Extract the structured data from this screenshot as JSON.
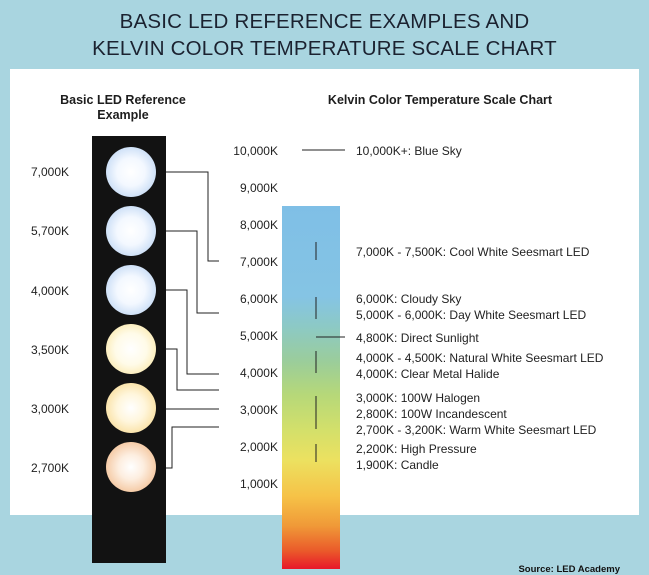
{
  "title": {
    "line1": "BASIC LED REFERENCE EXAMPLES AND",
    "line2": "KELVIN COLOR TEMPERATURE SCALE CHART"
  },
  "left_panel": {
    "heading_line1": "Basic LED Reference",
    "heading_line2": "Example",
    "bulbs": [
      {
        "label": "7,000K",
        "tone": "cool-white"
      },
      {
        "label": "5,700K",
        "tone": "cool-white"
      },
      {
        "label": "4,000K",
        "tone": "neutral-white"
      },
      {
        "label": "3,500K",
        "tone": "warm-cream"
      },
      {
        "label": "3,000K",
        "tone": "warm-yellow"
      },
      {
        "label": "2,700K",
        "tone": "warm-amber"
      }
    ]
  },
  "right_panel": {
    "heading": "Kelvin Color Temperature Scale Chart",
    "scale_ticks": [
      "10,000K",
      "9,000K",
      "8,000K",
      "7,000K",
      "6,000K",
      "5,000K",
      "4,000K",
      "3,000K",
      "2,000K",
      "1,000K"
    ],
    "annotations": [
      "10,000K+: Blue Sky",
      "7,000K - 7,500K: Cool White Seesmart LED",
      "6,000K: Cloudy Sky",
      "5,000K - 6,000K: Day White Seesmart LED",
      "4,800K: Direct Sunlight",
      "4,000K - 4,500K: Natural White Seesmart LED",
      "4,000K: Clear Metal Halide",
      "3,000K: 100W Halogen",
      "2,800K: 100W Incandescent",
      "2,700K - 3,200K: Warm White Seesmart LED",
      "2,200K: High Pressure",
      "1,900K: Candle"
    ]
  },
  "source": "Source: LED Academy",
  "colors": {
    "background": "#a9d5e0",
    "panel": "#ffffff",
    "strip": "#121212",
    "scale_top": "#7fbfe6",
    "scale_bottom": "#e8172a"
  }
}
